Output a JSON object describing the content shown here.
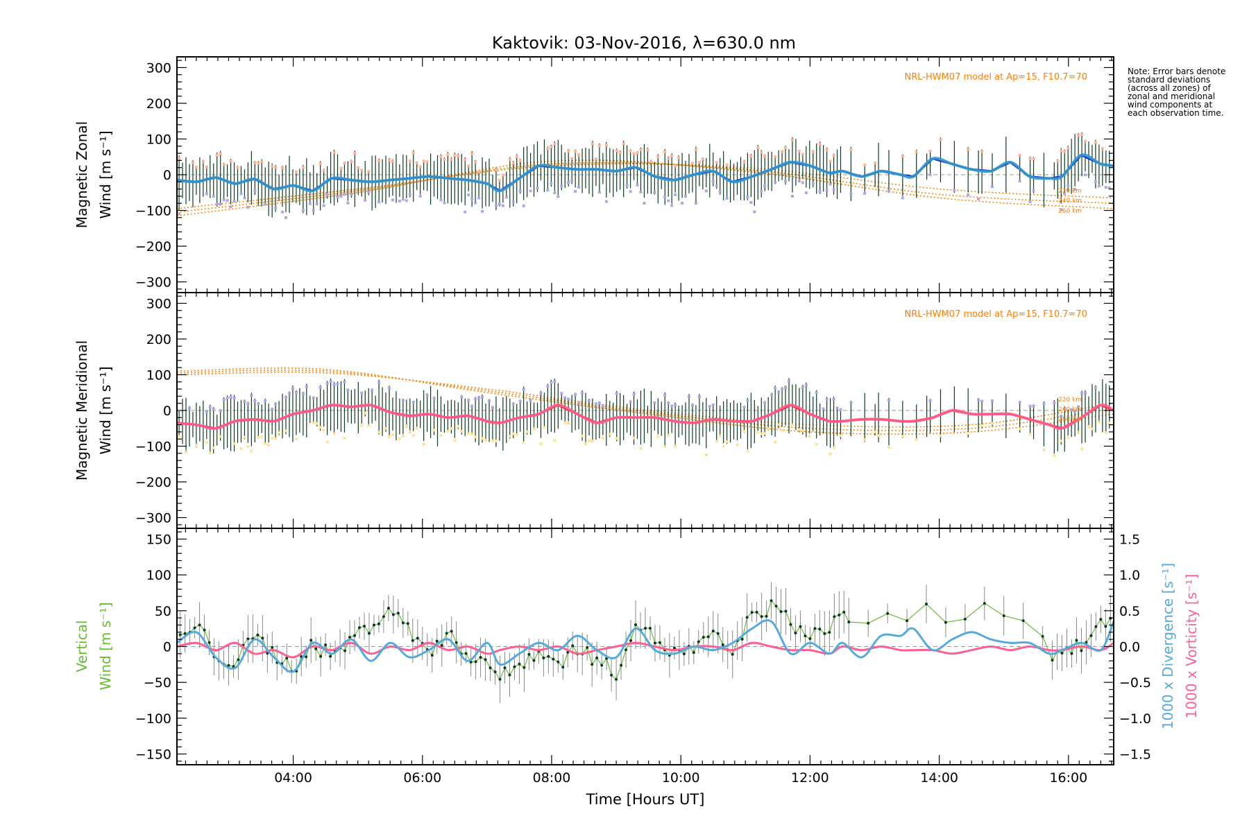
{
  "title": "Kaktovik: 03-Nov-2016, λ=630.0 nm",
  "note": "Note: Error bars denote standard deviations (across all zones) of zonal and meridional wind components at each observation time.",
  "xlabel": "Time [Hours UT]",
  "colors": {
    "zonal_mean": "#3399cc",
    "zonal_fit": "#1a33dd",
    "meridional_mean": "#ff5f8f",
    "meridional_fit": "#ee2222",
    "model": "#ff7f00",
    "scatter_lilac": "#b0a6e0",
    "scatter_salmon": "#ffb49a",
    "scatter_yellow": "#fde39a",
    "errorbar": "#0a3a1e",
    "vertical": "#66bb33",
    "divergence": "#55aadd",
    "vorticity": "#ff5f8f"
  },
  "chart_data": [
    {
      "type": "line",
      "panel": "zonal",
      "ylabel": [
        "Magnetic Zonal",
        "Wind [m s⁻¹]"
      ],
      "ylim": [
        -330,
        330
      ],
      "yticks": [
        -300,
        -200,
        -100,
        0,
        100,
        200,
        300
      ],
      "xlim": [
        "02:12",
        "16:42"
      ],
      "xticks": [
        "04:00",
        "06:00",
        "08:00",
        "10:00",
        "12:00",
        "14:00",
        "16:00"
      ],
      "model_annotation": "NRL-HWM07 model at Ap=15, F10.7=70",
      "model_labels": [
        "220 km",
        "240 km",
        "260 km"
      ],
      "series": [
        {
          "x": [
            "02:12",
            "02:30",
            "02:48",
            "03:06",
            "03:24",
            "03:42",
            "04:00",
            "04:18",
            "04:36",
            "04:54",
            "05:12",
            "05:30",
            "05:48",
            "06:06",
            "06:24",
            "06:42",
            "07:00",
            "07:12",
            "07:30",
            "07:48",
            "08:06",
            "08:24",
            "08:42",
            "09:00",
            "09:18",
            "09:36",
            "09:54",
            "10:12",
            "10:30",
            "10:48",
            "11:06",
            "11:24",
            "11:42",
            "12:00",
            "12:18",
            "12:30",
            "12:48",
            "13:06",
            "13:24",
            "13:36",
            "13:54",
            "14:12",
            "14:30",
            "14:48",
            "15:06",
            "15:24",
            "15:42",
            "15:54",
            "16:12",
            "16:30",
            "16:42"
          ],
          "values": [
            -15,
            -20,
            -8,
            -25,
            -12,
            -40,
            -30,
            -45,
            -10,
            -15,
            -20,
            -15,
            -10,
            -5,
            -10,
            -15,
            -25,
            -45,
            -10,
            25,
            20,
            15,
            15,
            10,
            20,
            -5,
            -15,
            0,
            10,
            -20,
            -5,
            15,
            35,
            25,
            5,
            10,
            -5,
            10,
            0,
            -5,
            45,
            30,
            15,
            10,
            35,
            -5,
            -10,
            -5,
            55,
            30,
            25
          ]
        }
      ],
      "model_curves": [
        {
          "name": "220 km",
          "x": [
            "02:12",
            "05:00",
            "08:00",
            "11:00",
            "14:00",
            "16:42"
          ],
          "values": [
            -95,
            -40,
            25,
            20,
            -40,
            -65
          ]
        },
        {
          "name": "240 km",
          "x": [
            "02:12",
            "05:00",
            "08:00",
            "11:00",
            "14:00",
            "16:42"
          ],
          "values": [
            -105,
            -45,
            30,
            15,
            -55,
            -80
          ]
        },
        {
          "name": "260 km",
          "x": [
            "02:12",
            "05:00",
            "08:00",
            "11:00",
            "14:00",
            "16:42"
          ],
          "values": [
            -115,
            -50,
            38,
            10,
            -65,
            -95
          ]
        }
      ]
    },
    {
      "type": "line",
      "panel": "meridional",
      "ylabel": [
        "Magnetic Meridional",
        "Wind [m s⁻¹]"
      ],
      "ylim": [
        -330,
        330
      ],
      "yticks": [
        -300,
        -200,
        -100,
        0,
        100,
        200,
        300
      ],
      "xlim": [
        "02:12",
        "16:42"
      ],
      "model_annotation": "NRL-HWM07 model at Ap=15, F10.7=70",
      "model_labels": [
        "220 km",
        "240 km",
        "260 km"
      ],
      "series": [
        {
          "x": [
            "02:12",
            "02:30",
            "02:48",
            "03:06",
            "03:24",
            "03:42",
            "04:00",
            "04:18",
            "04:36",
            "04:54",
            "05:12",
            "05:30",
            "05:48",
            "06:06",
            "06:24",
            "06:42",
            "07:00",
            "07:12",
            "07:30",
            "07:48",
            "08:06",
            "08:24",
            "08:42",
            "09:00",
            "09:18",
            "09:36",
            "09:54",
            "10:12",
            "10:30",
            "10:48",
            "11:06",
            "11:24",
            "11:42",
            "12:00",
            "12:18",
            "12:30",
            "12:48",
            "13:06",
            "13:24",
            "13:36",
            "13:54",
            "14:12",
            "14:30",
            "14:48",
            "15:06",
            "15:24",
            "15:42",
            "15:54",
            "16:12",
            "16:30",
            "16:42"
          ],
          "values": [
            -35,
            -40,
            -50,
            -30,
            -25,
            -30,
            -10,
            0,
            15,
            10,
            15,
            -5,
            -15,
            -10,
            -20,
            -15,
            -30,
            -35,
            -20,
            -10,
            15,
            -10,
            -35,
            -20,
            -20,
            -20,
            -30,
            -35,
            -25,
            -30,
            -30,
            -10,
            15,
            -10,
            -30,
            -30,
            -25,
            -25,
            -30,
            -30,
            -20,
            0,
            -10,
            -10,
            -10,
            -25,
            -40,
            -50,
            -20,
            15,
            0
          ]
        }
      ],
      "model_curves": [
        {
          "name": "220 km",
          "x": [
            "02:12",
            "04:30",
            "07:00",
            "09:30",
            "12:00",
            "14:30",
            "16:42"
          ],
          "values": [
            100,
            105,
            60,
            0,
            -40,
            -40,
            20
          ]
        },
        {
          "name": "240 km",
          "x": [
            "02:12",
            "04:30",
            "07:00",
            "09:30",
            "12:00",
            "14:30",
            "16:42"
          ],
          "values": [
            105,
            110,
            55,
            -5,
            -50,
            -50,
            5
          ]
        },
        {
          "name": "260 km",
          "x": [
            "02:12",
            "04:30",
            "07:00",
            "09:30",
            "12:00",
            "14:30",
            "16:42"
          ],
          "values": [
            110,
            115,
            50,
            -10,
            -60,
            -60,
            -10
          ]
        }
      ]
    },
    {
      "type": "line",
      "panel": "vertical",
      "ylabel_left": [
        "Vertical",
        "Wind [m s⁻¹]"
      ],
      "ylabel_right": [
        "1000 x Divergence [s⁻¹]",
        "1000 x Vorticity [s⁻¹]"
      ],
      "ylim": [
        -165,
        165
      ],
      "yticks": [
        -150,
        -100,
        -50,
        0,
        50,
        100,
        150
      ],
      "y2lim": [
        -1.65,
        1.65
      ],
      "y2ticks": [
        "-1.5",
        "-1.0",
        "-0.5",
        "0.0",
        "0.5",
        "1.0",
        "1.5"
      ],
      "xlim": [
        "02:12",
        "16:42"
      ],
      "series": [
        {
          "name": "Vertical",
          "x": [
            "02:12",
            "02:30",
            "02:48",
            "03:06",
            "03:24",
            "03:42",
            "04:00",
            "04:18",
            "04:36",
            "04:54",
            "05:12",
            "05:30",
            "05:48",
            "06:06",
            "06:24",
            "06:42",
            "07:00",
            "07:12",
            "07:30",
            "07:48",
            "08:06",
            "08:24",
            "08:42",
            "09:00",
            "09:18",
            "09:36",
            "09:54",
            "10:12",
            "10:30",
            "10:48",
            "11:06",
            "11:24",
            "11:42",
            "12:00",
            "12:18",
            "12:30",
            "12:48",
            "13:06",
            "13:24",
            "13:36",
            "13:54",
            "14:12",
            "14:30",
            "14:48",
            "15:06",
            "15:24",
            "15:42",
            "15:54",
            "16:12",
            "16:30",
            "16:42"
          ],
          "values": [
            5,
            30,
            -10,
            -25,
            15,
            -10,
            -30,
            5,
            -15,
            10,
            30,
            55,
            20,
            -5,
            15,
            -10,
            -20,
            -45,
            -25,
            -5,
            -25,
            0,
            -20,
            -35,
            35,
            10,
            -10,
            -5,
            15,
            -10,
            45,
            55,
            35,
            10,
            30,
            45,
            25,
            50,
            30,
            45,
            70,
            25,
            45,
            55,
            25,
            30,
            -10,
            -15,
            5,
            30,
            45
          ]
        },
        {
          "name": "Divergence",
          "x": [
            "02:12",
            "02:30",
            "02:48",
            "03:06",
            "03:24",
            "03:42",
            "04:00",
            "04:18",
            "04:36",
            "04:54",
            "05:12",
            "05:30",
            "05:48",
            "06:06",
            "06:24",
            "06:42",
            "07:00",
            "07:12",
            "07:30",
            "07:48",
            "08:06",
            "08:24",
            "08:42",
            "09:00",
            "09:18",
            "09:36",
            "09:54",
            "10:12",
            "10:30",
            "10:48",
            "11:06",
            "11:24",
            "11:42",
            "12:00",
            "12:18",
            "12:30",
            "12:48",
            "13:06",
            "13:24",
            "13:36",
            "13:54",
            "14:12",
            "14:30",
            "14:48",
            "15:06",
            "15:24",
            "15:42",
            "15:54",
            "16:12",
            "16:30",
            "16:42"
          ],
          "values": [
            0.05,
            0.2,
            -0.15,
            -0.3,
            0.1,
            -0.15,
            -0.35,
            0.05,
            -0.1,
            0.1,
            -0.2,
            0.05,
            -0.15,
            -0.05,
            0.1,
            -0.2,
            0.05,
            -0.25,
            -0.1,
            0.05,
            -0.05,
            0.15,
            -0.05,
            -0.15,
            0.25,
            -0.05,
            -0.1,
            0.0,
            -0.05,
            0.05,
            0.25,
            0.35,
            -0.1,
            0.05,
            -0.1,
            0.05,
            -0.15,
            0.15,
            0.15,
            0.25,
            -0.05,
            0.1,
            0.2,
            0.1,
            0.05,
            0.05,
            -0.1,
            -0.05,
            0.05,
            -0.05,
            0.35
          ]
        },
        {
          "name": "Vorticity",
          "x": [
            "02:12",
            "02:30",
            "02:48",
            "03:06",
            "03:24",
            "03:42",
            "04:00",
            "04:18",
            "04:36",
            "04:54",
            "05:12",
            "05:30",
            "05:48",
            "06:06",
            "06:24",
            "06:42",
            "07:00",
            "07:12",
            "07:30",
            "07:48",
            "08:06",
            "08:24",
            "08:42",
            "09:00",
            "09:18",
            "09:36",
            "09:54",
            "10:12",
            "10:30",
            "10:48",
            "11:06",
            "11:24",
            "11:42",
            "12:00",
            "12:18",
            "12:30",
            "12:48",
            "13:06",
            "13:24",
            "13:36",
            "13:54",
            "14:12",
            "14:30",
            "14:48",
            "15:06",
            "15:24",
            "15:42",
            "15:54",
            "16:12",
            "16:30",
            "16:42"
          ],
          "values": [
            0.0,
            0.05,
            -0.05,
            0.05,
            -0.1,
            -0.05,
            -0.15,
            0.0,
            -0.05,
            0.05,
            -0.1,
            0.0,
            -0.05,
            0.05,
            -0.05,
            0.0,
            -0.1,
            -0.05,
            0.0,
            -0.05,
            0.0,
            -0.1,
            -0.05,
            0.0,
            0.05,
            0.0,
            -0.05,
            0.0,
            0.0,
            -0.05,
            0.05,
            0.0,
            -0.05,
            -0.05,
            -0.1,
            0.0,
            -0.05,
            0.0,
            -0.05,
            -0.05,
            -0.05,
            -0.1,
            -0.05,
            0.0,
            -0.05,
            0.0,
            -0.05,
            -0.05,
            0.0,
            -0.05,
            0.05
          ]
        }
      ]
    }
  ]
}
